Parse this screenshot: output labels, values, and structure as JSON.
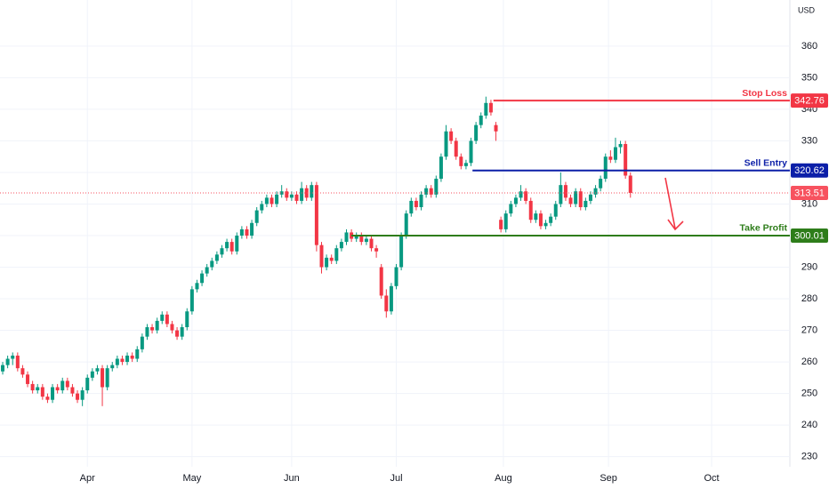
{
  "chart_data": {
    "type": "candlestick",
    "currency": "USD",
    "up_color": "#089981",
    "down_color": "#f23645",
    "grid": true,
    "ylim": [
      226.8,
      374.6
    ],
    "yticks": [
      230,
      240,
      250,
      260,
      270,
      280,
      290,
      300,
      310,
      320,
      330,
      340,
      350,
      360
    ],
    "xlim": [
      -0.54,
      158.0
    ],
    "xticks": [
      {
        "value": 17,
        "label": "Apr"
      },
      {
        "value": 38,
        "label": "May"
      },
      {
        "value": 58,
        "label": "Jun"
      },
      {
        "value": 79,
        "label": "Jul"
      },
      {
        "value": 100.5,
        "label": "Aug"
      },
      {
        "value": 121.6,
        "label": "Sep"
      },
      {
        "value": 142.3,
        "label": "Oct"
      }
    ],
    "levels": [
      {
        "name": "Stop Loss",
        "value": 342.76,
        "color": "#f23645",
        "start": 98.5
      },
      {
        "name": "Sell Entry",
        "value": 320.62,
        "color": "#0c1fa8",
        "start": 94.3
      },
      {
        "name": "Take Profit",
        "value": 300.01,
        "color": "#2e7d1a",
        "start": 70.0
      }
    ],
    "last_color": "#f7525f",
    "candles": {
      "open": [
        257,
        259,
        261,
        262,
        258,
        256,
        253,
        251,
        252,
        249,
        248,
        252,
        251,
        254,
        252,
        250,
        248,
        251,
        255,
        257,
        258,
        252,
        258,
        259,
        261,
        260,
        262,
        261,
        264,
        268,
        271,
        270,
        273,
        275,
        272,
        270,
        268,
        271,
        276,
        283,
        285,
        288,
        290,
        292,
        294,
        296,
        298,
        295,
        300,
        302,
        300,
        304,
        308,
        310,
        312,
        310,
        313,
        314,
        312,
        313,
        311,
        315,
        312,
        316,
        297,
        290,
        293,
        292,
        296,
        298,
        301,
        299,
        300,
        298,
        299,
        296,
        290,
        281,
        276,
        284,
        290,
        300,
        307,
        311,
        309,
        313,
        315,
        313,
        318,
        325,
        333,
        330,
        325,
        322,
        323,
        330,
        335,
        338,
        342,
        335,
        305,
        302,
        307,
        310,
        312,
        314,
        311,
        305,
        307,
        303,
        304,
        306,
        310,
        316,
        312,
        310,
        314,
        309,
        311,
        313,
        315,
        318,
        325,
        324,
        328,
        329,
        319
      ],
      "high": [
        260,
        262,
        263,
        263,
        259,
        257,
        254,
        253,
        253,
        250,
        253,
        253,
        255,
        255,
        253,
        251,
        252,
        256,
        258,
        259,
        259,
        259,
        260,
        262,
        262,
        263,
        263,
        265,
        269,
        272,
        272,
        274,
        276,
        276,
        273,
        271,
        272,
        277,
        284,
        286,
        289,
        291,
        293,
        295,
        297,
        299,
        299,
        301,
        303,
        303,
        305,
        309,
        311,
        313,
        313,
        314,
        316,
        315,
        314,
        314,
        317,
        316,
        317,
        317,
        298,
        294,
        294,
        297,
        299,
        302,
        302,
        301,
        301,
        300,
        300,
        297,
        291,
        283,
        285,
        291,
        301,
        308,
        312,
        312,
        314,
        316,
        316,
        319,
        326,
        335,
        334,
        331,
        326,
        324,
        331,
        336,
        339,
        344,
        343,
        336,
        306,
        308,
        311,
        313,
        316,
        315,
        312,
        308,
        308,
        305,
        307,
        311,
        320,
        317,
        313,
        315,
        315,
        312,
        314,
        316,
        319,
        326,
        327,
        331,
        330,
        330,
        320
      ],
      "low": [
        256,
        258,
        259,
        257,
        255,
        252,
        250,
        250,
        248,
        247,
        247,
        250,
        250,
        251,
        249,
        247,
        246,
        250,
        254,
        256,
        246,
        251,
        257,
        258,
        259,
        259,
        260,
        260,
        263,
        267,
        269,
        269,
        272,
        271,
        269,
        267,
        267,
        270,
        275,
        282,
        284,
        287,
        289,
        291,
        293,
        295,
        294,
        294,
        299,
        299,
        299,
        303,
        307,
        309,
        309,
        309,
        312,
        311,
        311,
        310,
        310,
        311,
        311,
        295,
        288,
        289,
        291,
        291,
        295,
        297,
        298,
        298,
        297,
        297,
        295,
        293,
        280,
        274,
        275,
        283,
        289,
        299,
        306,
        308,
        308,
        312,
        312,
        312,
        317,
        324,
        329,
        324,
        321,
        321,
        322,
        329,
        334,
        337,
        338,
        330,
        301,
        301,
        306,
        309,
        311,
        310,
        304,
        304,
        302,
        302,
        303,
        305,
        309,
        311,
        309,
        309,
        308,
        308,
        310,
        312,
        314,
        317,
        323,
        323,
        326,
        318,
        312
      ],
      "close": [
        259,
        261,
        262,
        258,
        256,
        253,
        251,
        252,
        249,
        248,
        252,
        251,
        254,
        252,
        250,
        248,
        251,
        255,
        257,
        258,
        252,
        258,
        259,
        261,
        260,
        262,
        261,
        264,
        268,
        271,
        270,
        273,
        275,
        272,
        270,
        268,
        271,
        276,
        283,
        285,
        288,
        290,
        292,
        294,
        296,
        298,
        295,
        300,
        302,
        300,
        304,
        308,
        310,
        312,
        310,
        313,
        314,
        312,
        313,
        311,
        315,
        312,
        316,
        297,
        290,
        293,
        292,
        296,
        298,
        301,
        299,
        300,
        298,
        299,
        296,
        295,
        281,
        276,
        284,
        290,
        300,
        307,
        311,
        309,
        313,
        315,
        313,
        318,
        325,
        333,
        330,
        325,
        322,
        323,
        330,
        335,
        338,
        342,
        339,
        333,
        302,
        307,
        310,
        312,
        314,
        311,
        305,
        307,
        303,
        304,
        306,
        310,
        316,
        312,
        310,
        314,
        309,
        311,
        313,
        315,
        318,
        325,
        324,
        328,
        329,
        319,
        313.51
      ]
    }
  }
}
